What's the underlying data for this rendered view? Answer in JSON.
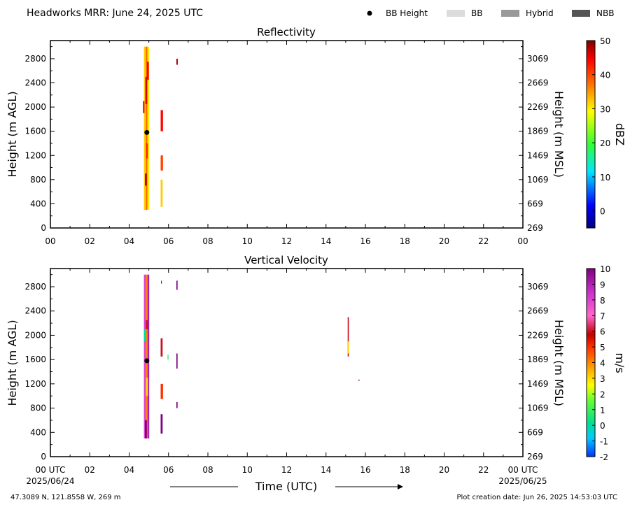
{
  "header": {
    "title": "Headworks MRR:  June 24, 2025 UTC",
    "legend": [
      {
        "label": "BB Height",
        "kind": "dot",
        "color": "#000000"
      },
      {
        "label": "BB",
        "kind": "swatch",
        "color": "#dcdcdc"
      },
      {
        "label": "Hybrid",
        "kind": "swatch",
        "color": "#999999"
      },
      {
        "label": "NBB",
        "kind": "swatch",
        "color": "#555555"
      }
    ]
  },
  "footer": {
    "location": "47.3089 N, 121.8558 W, 269 m",
    "creation": "Plot creation date: Jun 26, 2025 14:53:03 UTC",
    "xlabel": "Time (UTC)",
    "start_date": "2025/06/24",
    "end_date": "2025/06/25"
  },
  "chart_data": [
    {
      "type": "heatmap",
      "title": "Reflectivity",
      "ylabel": "Height (m AGL)",
      "ylabel_right": "Height (m MSL)",
      "x_ticks": [
        "00",
        "02",
        "04",
        "06",
        "08",
        "10",
        "12",
        "14",
        "16",
        "18",
        "20",
        "22",
        "00"
      ],
      "xlim": [
        0,
        24
      ],
      "ylim": [
        0,
        3100
      ],
      "y_ticks": [
        0,
        400,
        800,
        1200,
        1600,
        2000,
        2400,
        2800
      ],
      "y_ticks_right": [
        "269",
        "669",
        "1069",
        "1469",
        "1869",
        "2269",
        "2669",
        "3069"
      ],
      "colorbar": {
        "label": "dBZ",
        "range": [
          -5,
          50
        ],
        "ticks": [
          50,
          40,
          30,
          20,
          10,
          0
        ],
        "stops": [
          {
            "v": 0,
            "color": "#000080"
          },
          {
            "v": 0.12,
            "color": "#0000ff"
          },
          {
            "v": 0.3,
            "color": "#00e5ff"
          },
          {
            "v": 0.45,
            "color": "#33ff33"
          },
          {
            "v": 0.62,
            "color": "#ffff00"
          },
          {
            "v": 0.78,
            "color": "#ff6600"
          },
          {
            "v": 0.9,
            "color": "#ff0000"
          },
          {
            "v": 1,
            "color": "#800000"
          }
        ]
      },
      "bb_height": {
        "time": 4.9,
        "height": 1580
      },
      "cells": [
        {
          "t0": 4.75,
          "t1": 4.85,
          "h0": 300,
          "h1": 3000,
          "v": 32
        },
        {
          "t0": 4.85,
          "t1": 4.93,
          "h0": 300,
          "h1": 3000,
          "v": 38
        },
        {
          "t0": 4.93,
          "t1": 5.02,
          "h0": 300,
          "h1": 3000,
          "v": 30
        },
        {
          "t0": 4.82,
          "t1": 4.92,
          "h0": 2050,
          "h1": 2500,
          "v": 46
        },
        {
          "t0": 4.9,
          "t1": 5.0,
          "h0": 2450,
          "h1": 2750,
          "v": 45
        },
        {
          "t0": 4.8,
          "t1": 4.9,
          "h0": 700,
          "h1": 900,
          "v": 47
        },
        {
          "t0": 4.85,
          "t1": 4.95,
          "h0": 1150,
          "h1": 1400,
          "v": 42
        },
        {
          "t0": 4.7,
          "t1": 4.78,
          "h0": 1900,
          "h1": 2100,
          "v": 44
        },
        {
          "t0": 5.6,
          "t1": 5.72,
          "h0": 1600,
          "h1": 1950,
          "v": 44
        },
        {
          "t0": 5.6,
          "t1": 5.72,
          "h0": 950,
          "h1": 1200,
          "v": 40
        },
        {
          "t0": 5.6,
          "t1": 5.7,
          "h0": 350,
          "h1": 800,
          "v": 32
        },
        {
          "t0": 6.4,
          "t1": 6.47,
          "h0": 2700,
          "h1": 2800,
          "v": 48
        }
      ]
    },
    {
      "type": "heatmap",
      "title": "Vertical Velocity",
      "ylabel": "Height (m AGL)",
      "ylabel_right": "Height (m MSL)",
      "x_ticks": [
        "00 UTC",
        "02",
        "04",
        "06",
        "08",
        "10",
        "12",
        "14",
        "16",
        "18",
        "20",
        "22",
        "00 UTC"
      ],
      "xlim": [
        0,
        24
      ],
      "ylim": [
        0,
        3100
      ],
      "y_ticks": [
        0,
        400,
        800,
        1200,
        1600,
        2000,
        2400,
        2800
      ],
      "y_ticks_right": [
        "269",
        "669",
        "1069",
        "1469",
        "1869",
        "2269",
        "2669",
        "3069"
      ],
      "colorbar": {
        "label": "m/s",
        "range": [
          -2,
          10
        ],
        "ticks": [
          10,
          9,
          8,
          7,
          6,
          5,
          4,
          3,
          2,
          1,
          0,
          -1,
          -2
        ],
        "stops": [
          {
            "v": 0,
            "color": "#0033ff"
          },
          {
            "v": 0.1,
            "color": "#00ccff"
          },
          {
            "v": 0.18,
            "color": "#00e090"
          },
          {
            "v": 0.3,
            "color": "#66ff33"
          },
          {
            "v": 0.38,
            "color": "#ffff00"
          },
          {
            "v": 0.48,
            "color": "#ff9900"
          },
          {
            "v": 0.58,
            "color": "#ff3300"
          },
          {
            "v": 0.65,
            "color": "#c00000"
          },
          {
            "v": 0.75,
            "color": "#ff66cc"
          },
          {
            "v": 0.87,
            "color": "#cc33cc"
          },
          {
            "v": 1,
            "color": "#800080"
          }
        ]
      },
      "bb_height": {
        "time": 4.9,
        "height": 1580
      },
      "cells": [
        {
          "t0": 4.75,
          "t1": 4.85,
          "h0": 300,
          "h1": 3000,
          "v": 8
        },
        {
          "t0": 4.85,
          "t1": 4.93,
          "h0": 300,
          "h1": 3000,
          "v": 4
        },
        {
          "t0": 4.93,
          "t1": 5.02,
          "h0": 300,
          "h1": 3000,
          "v": 9
        },
        {
          "t0": 4.75,
          "t1": 4.85,
          "h0": 1900,
          "h1": 2100,
          "v": 0
        },
        {
          "t0": 4.8,
          "t1": 4.9,
          "h0": 300,
          "h1": 600,
          "v": 10
        },
        {
          "t0": 4.85,
          "t1": 4.95,
          "h0": 2100,
          "h1": 2250,
          "v": 6
        },
        {
          "t0": 4.85,
          "t1": 4.95,
          "h0": 1000,
          "h1": 1300,
          "v": 3
        },
        {
          "t0": 5.6,
          "t1": 5.7,
          "h0": 1650,
          "h1": 1950,
          "v": 6
        },
        {
          "t0": 5.6,
          "t1": 5.72,
          "h0": 950,
          "h1": 1200,
          "v": 5
        },
        {
          "t0": 5.6,
          "t1": 5.7,
          "h0": 380,
          "h1": 700,
          "v": 10
        },
        {
          "t0": 5.62,
          "t1": 5.66,
          "h0": 2850,
          "h1": 2900,
          "v": 10
        },
        {
          "t0": 6.4,
          "t1": 6.46,
          "h0": 2750,
          "h1": 2900,
          "v": 10
        },
        {
          "t0": 6.4,
          "t1": 6.46,
          "h0": 1450,
          "h1": 1700,
          "v": 10
        },
        {
          "t0": 6.4,
          "t1": 6.46,
          "h0": 800,
          "h1": 900,
          "v": 10
        },
        {
          "t0": 5.95,
          "t1": 6.0,
          "h0": 1600,
          "h1": 1680,
          "v": 1
        },
        {
          "t0": 15.1,
          "t1": 15.16,
          "h0": 1650,
          "h1": 2300,
          "v": 6
        },
        {
          "t0": 15.1,
          "t1": 15.16,
          "h0": 1700,
          "h1": 1900,
          "v": 3
        },
        {
          "t0": 15.65,
          "t1": 15.7,
          "h0": 1250,
          "h1": 1270,
          "v": 10
        }
      ]
    }
  ]
}
